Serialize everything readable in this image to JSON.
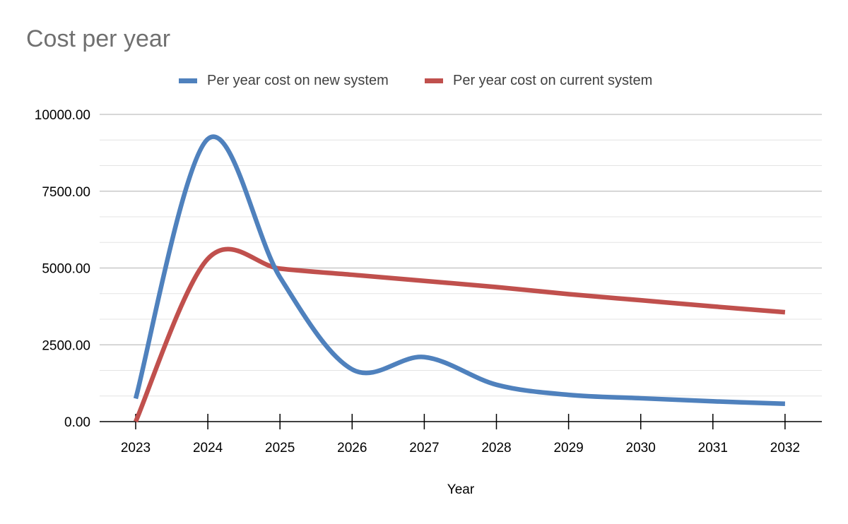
{
  "chart_data": {
    "type": "line",
    "title": "Cost per year",
    "xlabel": "Year",
    "ylabel": "",
    "categories": [
      "2023",
      "2024",
      "2025",
      "2026",
      "2027",
      "2028",
      "2029",
      "2030",
      "2031",
      "2032"
    ],
    "ylim": [
      0,
      10000
    ],
    "yticks": [
      "0.00",
      "2500.00",
      "5000.00",
      "7500.00",
      "10000.00"
    ],
    "grid": true,
    "legend_position": "top",
    "series": [
      {
        "name": "Per year cost on new system",
        "color": "#4f81bd",
        "values": [
          750,
          9200,
          4700,
          1700,
          2100,
          1200,
          870,
          760,
          660,
          580
        ]
      },
      {
        "name": "Per year cost on current system",
        "color": "#c0504d",
        "values": [
          0,
          5300,
          4980,
          4780,
          4580,
          4380,
          4150,
          3950,
          3750,
          3560
        ]
      }
    ]
  }
}
